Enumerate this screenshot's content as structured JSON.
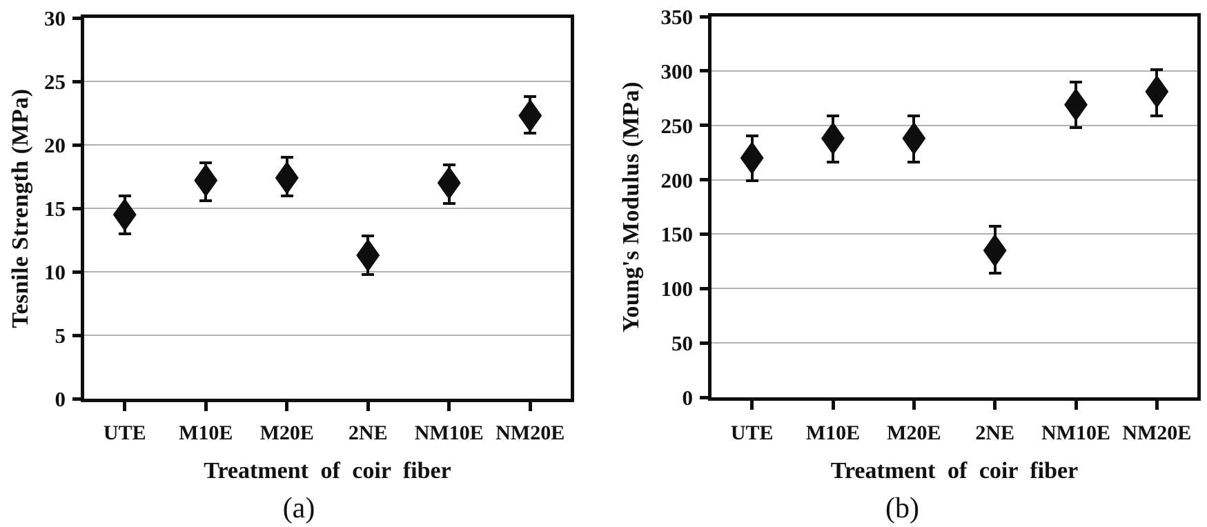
{
  "figure": {
    "background_color": "#ffffff",
    "text_color": "#111111",
    "gridline_color": "#b3b3b3",
    "marker_color": "#0e0e0e"
  },
  "chart_data": [
    {
      "type": "scatter",
      "marker": "diamond",
      "error_bars": true,
      "grid": "horizontal",
      "title": "",
      "ylabel": "Tesnile Strength (MPa)",
      "xlabel": "Treatment of coir fiber",
      "caption": "(a)",
      "categories": [
        "UTE",
        "M10E",
        "M20E",
        "2NE",
        "NM10E",
        "NM20E"
      ],
      "values": [
        14.5,
        17.2,
        17.4,
        11.3,
        17.0,
        22.3
      ],
      "error_plus": [
        1.5,
        1.4,
        1.6,
        1.5,
        1.4,
        1.5
      ],
      "error_minus": [
        1.5,
        1.6,
        1.4,
        1.5,
        1.6,
        1.4
      ],
      "ylim": [
        0,
        30
      ],
      "yticks": [
        0,
        5,
        10,
        15,
        20,
        25,
        30
      ]
    },
    {
      "type": "scatter",
      "marker": "diamond",
      "error_bars": true,
      "grid": "horizontal",
      "title": "",
      "ylabel": "Young's Modulus (MPa)",
      "xlabel": "Treatment of coir fiber",
      "caption": "(b)",
      "categories": [
        "UTE",
        "M10E",
        "M20E",
        "2NE",
        "NM10E",
        "NM20E"
      ],
      "values": [
        220,
        238,
        238,
        135,
        269,
        281
      ],
      "error_plus": [
        20,
        21,
        21,
        22,
        21,
        20
      ],
      "error_minus": [
        21,
        22,
        22,
        21,
        21,
        22
      ],
      "ylim": [
        0,
        350
      ],
      "yticks": [
        0,
        50,
        100,
        150,
        200,
        250,
        300,
        350
      ]
    }
  ]
}
